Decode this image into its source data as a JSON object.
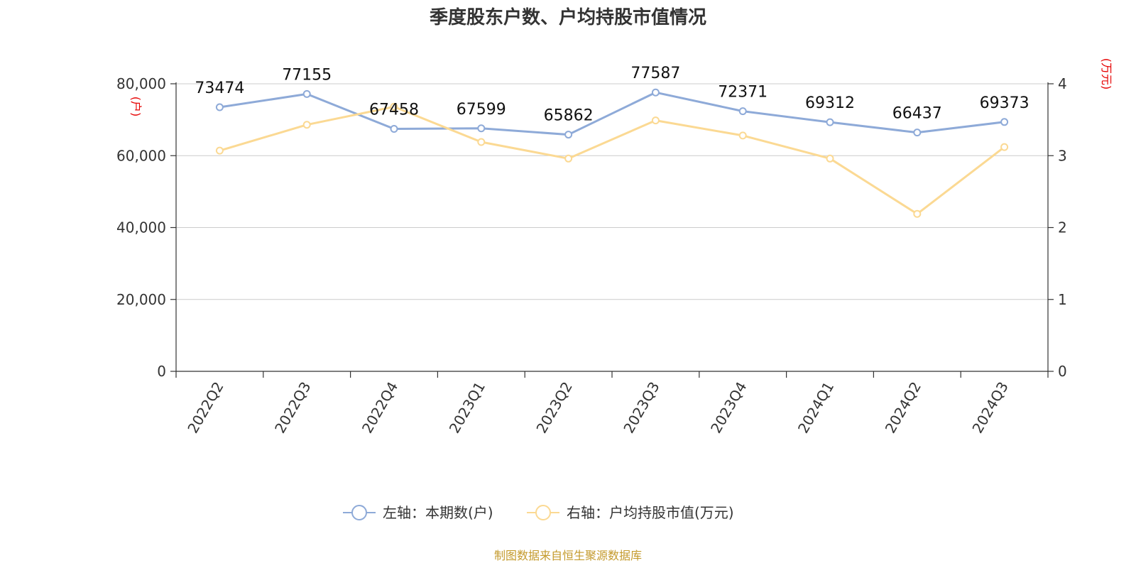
{
  "chart_data": {
    "type": "line",
    "title": "季度股东户数、户均持股市值情况",
    "categories": [
      "2022Q2",
      "2022Q3",
      "2022Q4",
      "2023Q1",
      "2023Q2",
      "2023Q3",
      "2023Q4",
      "2024Q1",
      "2024Q2",
      "2024Q3"
    ],
    "left_axis": {
      "unit": "(户)",
      "ylim": [
        0,
        80000
      ],
      "ticks": [
        0,
        20000,
        40000,
        60000,
        80000
      ],
      "tick_labels": [
        "0",
        "20,000",
        "40,000",
        "60,000",
        "80,000"
      ]
    },
    "right_axis": {
      "unit": "(万元)",
      "ylim": [
        0,
        4
      ],
      "ticks": [
        0,
        1,
        2,
        3,
        4
      ],
      "tick_labels": [
        "0",
        "1",
        "2",
        "3",
        "4"
      ]
    },
    "grid": true,
    "legend_position": "bottom",
    "series": [
      {
        "name": "左轴：本期数(户)",
        "axis": "left",
        "color": "#8eaad8",
        "values": [
          73474,
          77155,
          67458,
          67599,
          65862,
          77587,
          72371,
          69312,
          66437,
          69373
        ],
        "labels": [
          "73474",
          "77155",
          "67458",
          "67599",
          "65862",
          "77587",
          "72371",
          "69312",
          "66437",
          "69373"
        ]
      },
      {
        "name": "右轴：户均持股市值(万元)",
        "axis": "right",
        "color": "#fbd993",
        "values": [
          3.07,
          3.43,
          3.68,
          3.19,
          2.96,
          3.49,
          3.28,
          2.96,
          2.19,
          3.12
        ]
      }
    ]
  },
  "source": "制图数据来自恒生聚源数据库"
}
